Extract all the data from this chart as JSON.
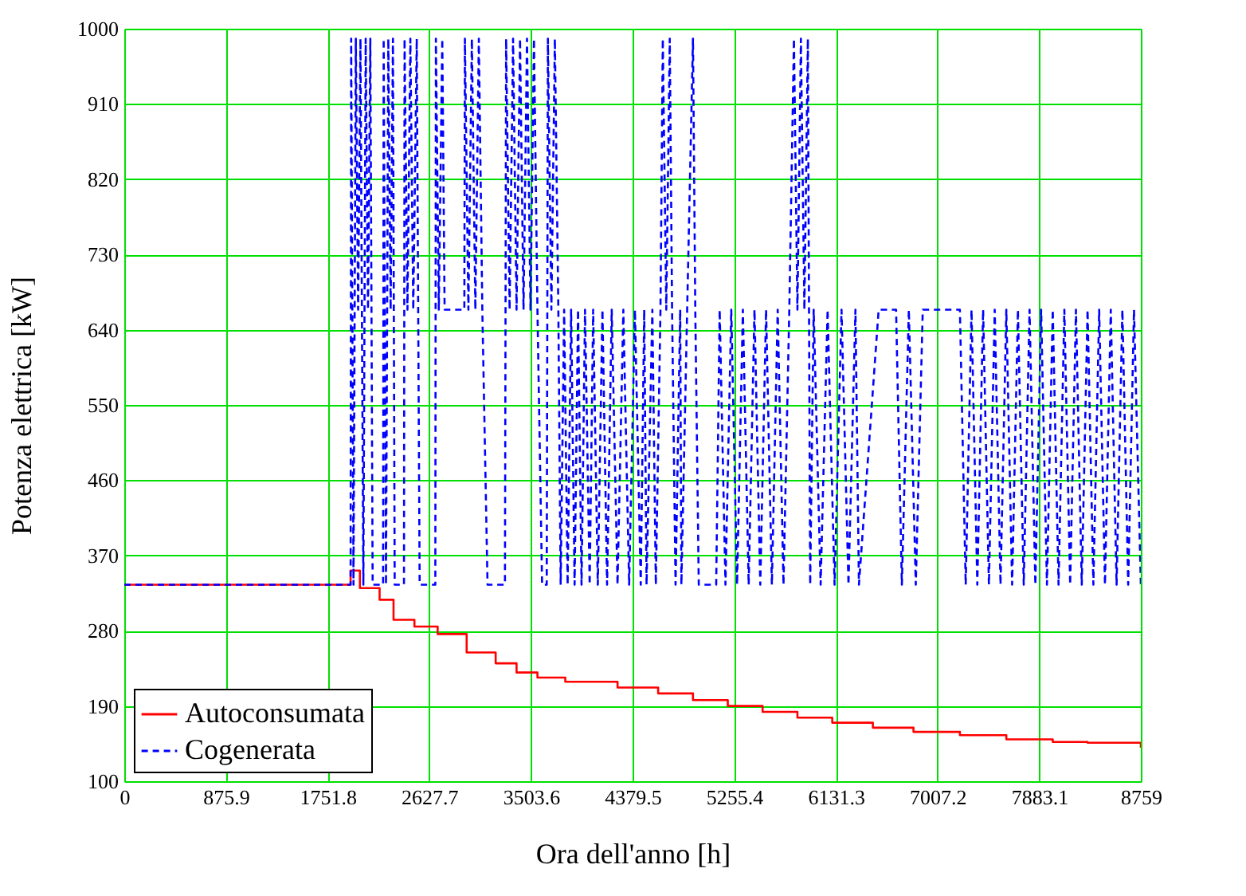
{
  "chart_data": {
    "type": "line",
    "xlabel": "Ora dell'anno [h]",
    "ylabel": "Potenza elettrica [kW]",
    "xlim": [
      0,
      8759
    ],
    "xticks": [
      0,
      875.9,
      1751.8,
      2627.7,
      3503.6,
      4379.5,
      5255.4,
      6131.3,
      7007.2,
      7883.1,
      8759
    ],
    "ylim": [
      100,
      1000
    ],
    "yticks": [
      100,
      190,
      280,
      370,
      460,
      550,
      640,
      730,
      820,
      910,
      1000
    ],
    "grid": true,
    "legend": "bottom left",
    "series": [
      {
        "name": "Autoconsumata",
        "color": "#ff0000",
        "type": "step",
        "line_style": "solid",
        "x": [
          0,
          1950,
          2030,
          2200,
          2320,
          2500,
          2700,
          2950,
          3200,
          3380,
          3560,
          3800,
          4250,
          4600,
          4900,
          5200,
          5500,
          5800,
          6100,
          6450,
          6800,
          7200,
          7600,
          8000,
          8300,
          8700,
          8759
        ],
        "values": [
          335,
          352,
          331,
          317,
          293,
          285,
          276,
          254,
          241,
          230,
          224,
          219,
          212,
          205,
          197,
          190,
          183,
          176,
          170,
          164,
          159,
          155,
          150,
          147,
          146,
          146,
          140
        ]
      },
      {
        "name": "Cogenerata",
        "color": "#0000ff",
        "type": "line",
        "line_style": "dashed",
        "x": [
          0,
          1950,
          1955,
          1975,
          1995,
          2015,
          2035,
          2060,
          2080,
          2100,
          2120,
          2140,
          2230,
          2235,
          2255,
          2275,
          2295,
          2315,
          2330,
          2410,
          2415,
          2440,
          2465,
          2490,
          2520,
          2545,
          2680,
          2685,
          2710,
          2740,
          2760,
          2930,
          2935,
          2965,
          2995,
          3025,
          3055,
          3085,
          3130,
          3280,
          3290,
          3320,
          3350,
          3380,
          3410,
          3440,
          3470,
          3500,
          3530,
          3560,
          3600,
          3640,
          3650,
          3680,
          3710,
          3740,
          3760,
          3790,
          3820,
          3850,
          3880,
          3910,
          3940,
          3970,
          4010,
          4040,
          4080,
          4120,
          4160,
          4200,
          4250,
          4300,
          4350,
          4400,
          4450,
          4480,
          4500,
          4550,
          4580,
          4620,
          4640,
          4670,
          4700,
          4720,
          4750,
          4790,
          4800,
          4850,
          4900,
          4920,
          4950,
          5100,
          5130,
          5180,
          5230,
          5280,
          5330,
          5380,
          5430,
          5480,
          5530,
          5580,
          5630,
          5680,
          5730,
          5770,
          5800,
          5830,
          5860,
          5890,
          5910,
          5940,
          6000,
          6060,
          6120,
          6180,
          6240,
          6300,
          6330,
          6500,
          6650,
          6700,
          6760,
          6820,
          6880,
          6950,
          7200,
          7250,
          7300,
          7350,
          7400,
          7450,
          7500,
          7550,
          7600,
          7650,
          7700,
          7750,
          7800,
          7850,
          7900,
          7950,
          8000,
          8050,
          8100,
          8150,
          8200,
          8250,
          8300,
          8350,
          8400,
          8450,
          8500,
          8550,
          8600,
          8650,
          8700,
          8759
        ],
        "values": [
          335,
          335,
          988,
          335,
          988,
          664,
          988,
          335,
          988,
          664,
          988,
          335,
          335,
          988,
          335,
          988,
          664,
          988,
          335,
          335,
          988,
          664,
          988,
          664,
          988,
          335,
          335,
          988,
          664,
          988,
          664,
          664,
          988,
          664,
          988,
          664,
          988,
          664,
          335,
          335,
          988,
          664,
          988,
          664,
          988,
          664,
          988,
          664,
          988,
          664,
          335,
          335,
          988,
          664,
          988,
          664,
          335,
          664,
          335,
          664,
          335,
          664,
          335,
          664,
          335,
          664,
          335,
          664,
          335,
          664,
          335,
          664,
          335,
          664,
          335,
          664,
          335,
          664,
          335,
          664,
          988,
          664,
          988,
          664,
          335,
          664,
          335,
          664,
          988,
          664,
          335,
          335,
          664,
          335,
          664,
          335,
          664,
          335,
          664,
          335,
          664,
          335,
          664,
          335,
          664,
          988,
          664,
          988,
          664,
          988,
          335,
          664,
          335,
          664,
          335,
          664,
          335,
          664,
          335,
          664,
          664,
          335,
          664,
          335,
          664,
          664,
          664,
          335,
          664,
          335,
          664,
          335,
          664,
          335,
          664,
          335,
          664,
          335,
          664,
          335,
          664,
          335,
          664,
          335,
          664,
          335,
          664,
          335,
          664,
          335,
          664,
          335,
          664,
          335,
          664,
          335,
          664,
          335
        ]
      }
    ]
  }
}
